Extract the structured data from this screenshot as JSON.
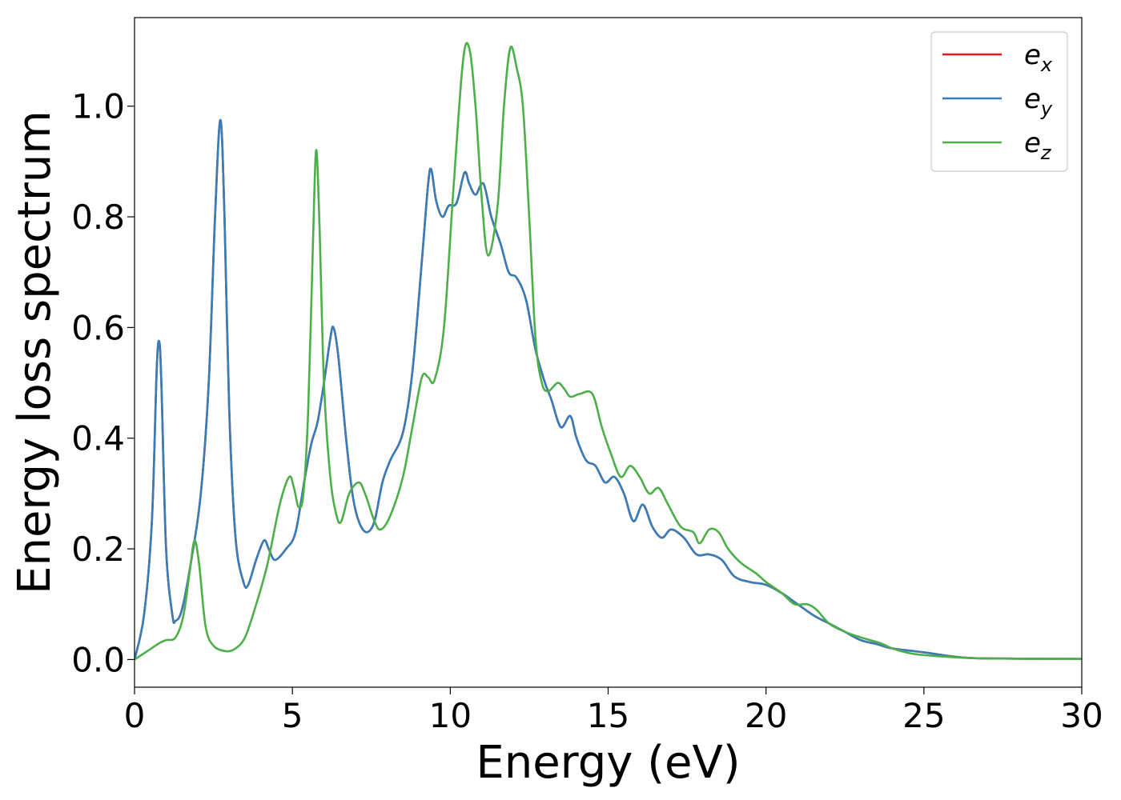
{
  "chart_data": {
    "type": "line",
    "title": "",
    "xlabel": "Energy (eV)",
    "ylabel": "Energy loss spectrum",
    "xlim": [
      0,
      30
    ],
    "ylim": [
      -0.05,
      1.16
    ],
    "xticks": [
      0,
      5,
      10,
      15,
      20,
      25,
      30
    ],
    "xtick_labels": [
      "0",
      "5",
      "10",
      "15",
      "20",
      "25",
      "30"
    ],
    "yticks": [
      0.0,
      0.2,
      0.4,
      0.6,
      0.8,
      1.0
    ],
    "ytick_labels": [
      "0.0",
      "0.2",
      "0.4",
      "0.6",
      "0.8",
      "1.0"
    ],
    "grid": false,
    "legend_position": "top-right",
    "series": [
      {
        "name": "e_x",
        "legend_base": "e",
        "legend_sub": "x",
        "color": "#e41a1c",
        "points": [
          [
            0,
            0.0
          ],
          [
            0.3,
            0.08
          ],
          [
            0.55,
            0.25
          ],
          [
            0.7,
            0.52
          ],
          [
            0.78,
            0.575
          ],
          [
            0.85,
            0.5
          ],
          [
            1.0,
            0.2
          ],
          [
            1.2,
            0.08
          ],
          [
            1.3,
            0.07
          ],
          [
            1.5,
            0.09
          ],
          [
            1.8,
            0.18
          ],
          [
            2.1,
            0.3
          ],
          [
            2.35,
            0.5
          ],
          [
            2.55,
            0.8
          ],
          [
            2.72,
            0.975
          ],
          [
            2.85,
            0.8
          ],
          [
            3.0,
            0.45
          ],
          [
            3.2,
            0.22
          ],
          [
            3.45,
            0.14
          ],
          [
            3.6,
            0.135
          ],
          [
            3.85,
            0.18
          ],
          [
            4.1,
            0.215
          ],
          [
            4.25,
            0.2
          ],
          [
            4.45,
            0.18
          ],
          [
            4.8,
            0.2
          ],
          [
            5.1,
            0.23
          ],
          [
            5.4,
            0.33
          ],
          [
            5.6,
            0.39
          ],
          [
            5.8,
            0.43
          ],
          [
            6.0,
            0.5
          ],
          [
            6.2,
            0.58
          ],
          [
            6.3,
            0.6
          ],
          [
            6.45,
            0.55
          ],
          [
            6.7,
            0.4
          ],
          [
            6.9,
            0.3
          ],
          [
            7.1,
            0.25
          ],
          [
            7.35,
            0.23
          ],
          [
            7.6,
            0.25
          ],
          [
            7.85,
            0.32
          ],
          [
            8.1,
            0.36
          ],
          [
            8.5,
            0.41
          ],
          [
            8.8,
            0.52
          ],
          [
            9.1,
            0.72
          ],
          [
            9.3,
            0.86
          ],
          [
            9.4,
            0.885
          ],
          [
            9.55,
            0.83
          ],
          [
            9.75,
            0.8
          ],
          [
            9.95,
            0.82
          ],
          [
            10.2,
            0.825
          ],
          [
            10.45,
            0.88
          ],
          [
            10.6,
            0.86
          ],
          [
            10.8,
            0.84
          ],
          [
            11.05,
            0.86
          ],
          [
            11.3,
            0.8
          ],
          [
            11.6,
            0.75
          ],
          [
            11.85,
            0.7
          ],
          [
            12.1,
            0.69
          ],
          [
            12.4,
            0.65
          ],
          [
            12.7,
            0.56
          ],
          [
            13.0,
            0.5
          ],
          [
            13.2,
            0.47
          ],
          [
            13.5,
            0.42
          ],
          [
            13.8,
            0.44
          ],
          [
            14.0,
            0.4
          ],
          [
            14.3,
            0.36
          ],
          [
            14.6,
            0.35
          ],
          [
            14.9,
            0.32
          ],
          [
            15.2,
            0.33
          ],
          [
            15.5,
            0.3
          ],
          [
            15.8,
            0.25
          ],
          [
            16.1,
            0.28
          ],
          [
            16.4,
            0.24
          ],
          [
            16.7,
            0.22
          ],
          [
            17.0,
            0.235
          ],
          [
            17.4,
            0.22
          ],
          [
            17.8,
            0.19
          ],
          [
            18.2,
            0.19
          ],
          [
            18.6,
            0.18
          ],
          [
            19.0,
            0.15
          ],
          [
            19.5,
            0.14
          ],
          [
            20.0,
            0.135
          ],
          [
            20.5,
            0.12
          ],
          [
            21.0,
            0.1
          ],
          [
            21.5,
            0.08
          ],
          [
            22.0,
            0.065
          ],
          [
            22.5,
            0.05
          ],
          [
            23.0,
            0.035
          ],
          [
            23.5,
            0.028
          ],
          [
            24.0,
            0.02
          ],
          [
            25.0,
            0.013
          ],
          [
            26.0,
            0.005
          ],
          [
            27.0,
            0.002
          ],
          [
            30.0,
            0.001
          ]
        ]
      },
      {
        "name": "e_y",
        "legend_base": "e",
        "legend_sub": "y",
        "color": "#377eb8",
        "points": [
          [
            0,
            0.0
          ],
          [
            0.3,
            0.08
          ],
          [
            0.55,
            0.25
          ],
          [
            0.7,
            0.52
          ],
          [
            0.78,
            0.575
          ],
          [
            0.85,
            0.5
          ],
          [
            1.0,
            0.2
          ],
          [
            1.2,
            0.08
          ],
          [
            1.3,
            0.07
          ],
          [
            1.5,
            0.09
          ],
          [
            1.8,
            0.18
          ],
          [
            2.1,
            0.3
          ],
          [
            2.35,
            0.5
          ],
          [
            2.55,
            0.8
          ],
          [
            2.72,
            0.975
          ],
          [
            2.85,
            0.8
          ],
          [
            3.0,
            0.45
          ],
          [
            3.2,
            0.22
          ],
          [
            3.45,
            0.14
          ],
          [
            3.6,
            0.135
          ],
          [
            3.85,
            0.18
          ],
          [
            4.1,
            0.215
          ],
          [
            4.25,
            0.2
          ],
          [
            4.45,
            0.18
          ],
          [
            4.8,
            0.2
          ],
          [
            5.1,
            0.23
          ],
          [
            5.4,
            0.33
          ],
          [
            5.6,
            0.39
          ],
          [
            5.8,
            0.43
          ],
          [
            6.0,
            0.5
          ],
          [
            6.2,
            0.58
          ],
          [
            6.3,
            0.6
          ],
          [
            6.45,
            0.55
          ],
          [
            6.7,
            0.4
          ],
          [
            6.9,
            0.3
          ],
          [
            7.1,
            0.25
          ],
          [
            7.35,
            0.23
          ],
          [
            7.6,
            0.25
          ],
          [
            7.85,
            0.32
          ],
          [
            8.1,
            0.36
          ],
          [
            8.5,
            0.41
          ],
          [
            8.8,
            0.52
          ],
          [
            9.1,
            0.72
          ],
          [
            9.3,
            0.86
          ],
          [
            9.4,
            0.885
          ],
          [
            9.55,
            0.83
          ],
          [
            9.75,
            0.8
          ],
          [
            9.95,
            0.82
          ],
          [
            10.2,
            0.825
          ],
          [
            10.45,
            0.88
          ],
          [
            10.6,
            0.86
          ],
          [
            10.8,
            0.84
          ],
          [
            11.05,
            0.86
          ],
          [
            11.3,
            0.8
          ],
          [
            11.6,
            0.75
          ],
          [
            11.85,
            0.7
          ],
          [
            12.1,
            0.69
          ],
          [
            12.4,
            0.65
          ],
          [
            12.7,
            0.56
          ],
          [
            13.0,
            0.5
          ],
          [
            13.2,
            0.47
          ],
          [
            13.5,
            0.42
          ],
          [
            13.8,
            0.44
          ],
          [
            14.0,
            0.4
          ],
          [
            14.3,
            0.36
          ],
          [
            14.6,
            0.35
          ],
          [
            14.9,
            0.32
          ],
          [
            15.2,
            0.33
          ],
          [
            15.5,
            0.3
          ],
          [
            15.8,
            0.25
          ],
          [
            16.1,
            0.28
          ],
          [
            16.4,
            0.24
          ],
          [
            16.7,
            0.22
          ],
          [
            17.0,
            0.235
          ],
          [
            17.4,
            0.22
          ],
          [
            17.8,
            0.19
          ],
          [
            18.2,
            0.19
          ],
          [
            18.6,
            0.18
          ],
          [
            19.0,
            0.15
          ],
          [
            19.5,
            0.14
          ],
          [
            20.0,
            0.135
          ],
          [
            20.5,
            0.12
          ],
          [
            21.0,
            0.1
          ],
          [
            21.5,
            0.08
          ],
          [
            22.0,
            0.065
          ],
          [
            22.5,
            0.05
          ],
          [
            23.0,
            0.035
          ],
          [
            23.5,
            0.028
          ],
          [
            24.0,
            0.02
          ],
          [
            25.0,
            0.013
          ],
          [
            26.0,
            0.005
          ],
          [
            27.0,
            0.002
          ],
          [
            30.0,
            0.001
          ]
        ]
      },
      {
        "name": "e_z",
        "legend_base": "e",
        "legend_sub": "z",
        "color": "#4daf4a",
        "points": [
          [
            0,
            0.0
          ],
          [
            0.4,
            0.015
          ],
          [
            0.8,
            0.03
          ],
          [
            1.0,
            0.035
          ],
          [
            1.3,
            0.04
          ],
          [
            1.55,
            0.08
          ],
          [
            1.75,
            0.16
          ],
          [
            1.9,
            0.215
          ],
          [
            2.05,
            0.17
          ],
          [
            2.25,
            0.06
          ],
          [
            2.5,
            0.025
          ],
          [
            2.9,
            0.015
          ],
          [
            3.2,
            0.02
          ],
          [
            3.5,
            0.04
          ],
          [
            3.8,
            0.09
          ],
          [
            4.2,
            0.17
          ],
          [
            4.6,
            0.28
          ],
          [
            4.9,
            0.33
          ],
          [
            5.05,
            0.31
          ],
          [
            5.2,
            0.275
          ],
          [
            5.35,
            0.3
          ],
          [
            5.5,
            0.45
          ],
          [
            5.65,
            0.75
          ],
          [
            5.75,
            0.92
          ],
          [
            5.85,
            0.8
          ],
          [
            6.0,
            0.5
          ],
          [
            6.2,
            0.33
          ],
          [
            6.4,
            0.26
          ],
          [
            6.55,
            0.25
          ],
          [
            6.8,
            0.3
          ],
          [
            7.1,
            0.32
          ],
          [
            7.3,
            0.3
          ],
          [
            7.6,
            0.25
          ],
          [
            7.8,
            0.235
          ],
          [
            8.1,
            0.26
          ],
          [
            8.5,
            0.33
          ],
          [
            8.8,
            0.42
          ],
          [
            9.1,
            0.51
          ],
          [
            9.3,
            0.51
          ],
          [
            9.5,
            0.505
          ],
          [
            9.8,
            0.6
          ],
          [
            10.1,
            0.85
          ],
          [
            10.4,
            1.08
          ],
          [
            10.6,
            1.105
          ],
          [
            10.8,
            1.0
          ],
          [
            11.0,
            0.83
          ],
          [
            11.2,
            0.73
          ],
          [
            11.5,
            0.82
          ],
          [
            11.7,
            1.0
          ],
          [
            11.9,
            1.105
          ],
          [
            12.1,
            1.07
          ],
          [
            12.3,
            1.0
          ],
          [
            12.5,
            0.8
          ],
          [
            12.7,
            0.58
          ],
          [
            12.9,
            0.5
          ],
          [
            13.1,
            0.485
          ],
          [
            13.4,
            0.5
          ],
          [
            13.6,
            0.49
          ],
          [
            13.8,
            0.475
          ],
          [
            14.1,
            0.48
          ],
          [
            14.5,
            0.48
          ],
          [
            14.8,
            0.42
          ],
          [
            15.1,
            0.37
          ],
          [
            15.4,
            0.33
          ],
          [
            15.7,
            0.35
          ],
          [
            16.0,
            0.33
          ],
          [
            16.3,
            0.3
          ],
          [
            16.6,
            0.31
          ],
          [
            16.9,
            0.28
          ],
          [
            17.3,
            0.24
          ],
          [
            17.7,
            0.23
          ],
          [
            17.9,
            0.21
          ],
          [
            18.2,
            0.235
          ],
          [
            18.5,
            0.23
          ],
          [
            18.8,
            0.2
          ],
          [
            19.2,
            0.175
          ],
          [
            19.7,
            0.155
          ],
          [
            20.0,
            0.14
          ],
          [
            20.5,
            0.12
          ],
          [
            20.9,
            0.1
          ],
          [
            21.3,
            0.1
          ],
          [
            21.6,
            0.09
          ],
          [
            22.0,
            0.065
          ],
          [
            22.5,
            0.05
          ],
          [
            23.0,
            0.04
          ],
          [
            23.6,
            0.03
          ],
          [
            24.0,
            0.02
          ],
          [
            24.5,
            0.012
          ],
          [
            25.0,
            0.008
          ],
          [
            26.0,
            0.004
          ],
          [
            27.0,
            0.002
          ],
          [
            30.0,
            0.001
          ]
        ]
      }
    ]
  }
}
